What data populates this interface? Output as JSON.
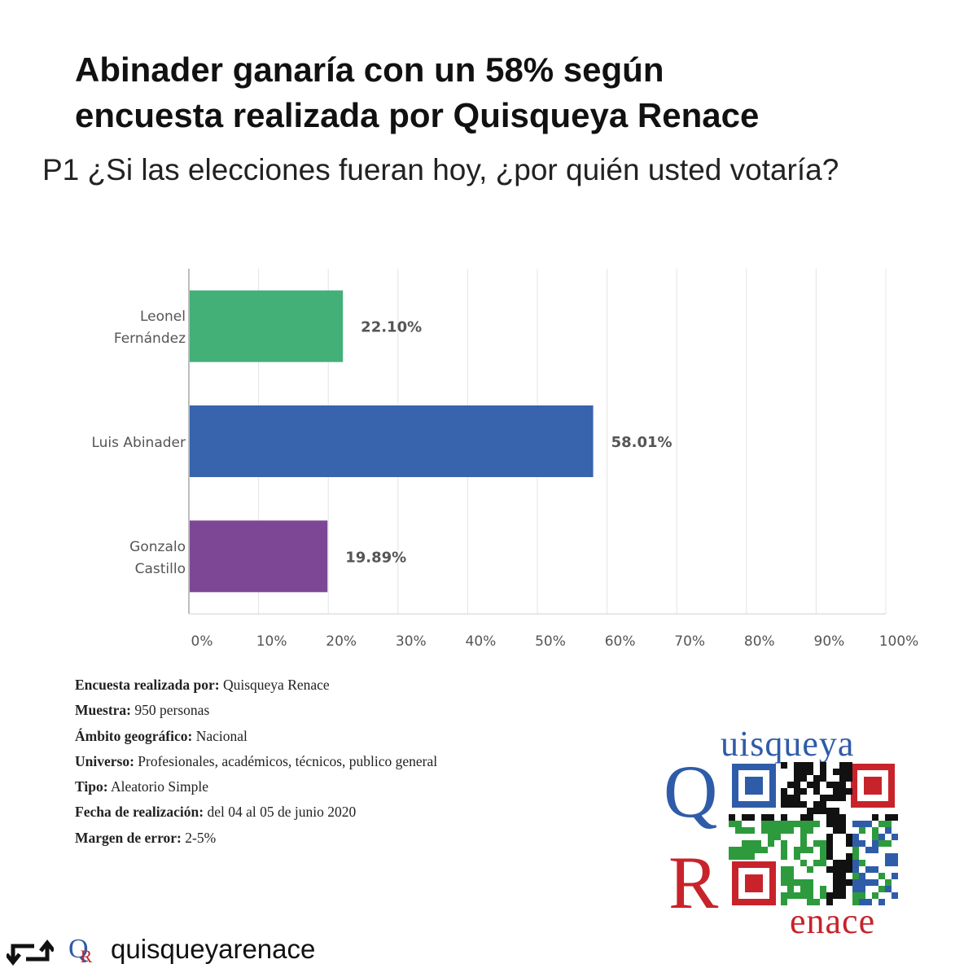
{
  "header": {
    "title_line1": "Abinader ganaría con un 58% según",
    "title_line2": "encuesta realizada por Quisqueya Renace",
    "question": "P1 ¿Si las elecciones fueran hoy, ¿por quién usted votaría?"
  },
  "chart_data": {
    "type": "bar",
    "orientation": "horizontal",
    "categories": [
      [
        "Leonel",
        "Fernández"
      ],
      [
        "Luis Abinader"
      ],
      [
        "Gonzalo",
        "Castillo"
      ]
    ],
    "values": [
      22.1,
      58.01,
      19.89
    ],
    "value_labels": [
      "22.10%",
      "58.01%",
      "19.89%"
    ],
    "colors": [
      "#43b077",
      "#3863ad",
      "#7e4796"
    ],
    "xlim": [
      0,
      100
    ],
    "xticks": [
      0,
      10,
      20,
      30,
      40,
      50,
      60,
      70,
      80,
      90,
      100
    ],
    "xtick_labels": [
      "0%",
      "10%",
      "20%",
      "30%",
      "40%",
      "50%",
      "60%",
      "70%",
      "80%",
      "90%",
      "100%"
    ],
    "grid": true,
    "title": "",
    "xlabel": "",
    "ylabel": ""
  },
  "footer": {
    "rows": [
      {
        "label": "Encuesta realizada por:",
        "value": "Quisqueya Renace"
      },
      {
        "label": "Muestra:",
        "value": "950 personas"
      },
      {
        "label": "Ámbito geográfico:",
        "value": "Nacional"
      },
      {
        "label": "Universo:",
        "value": "Profesionales, académicos, técnicos, publico general"
      },
      {
        "label": "Tipo:",
        "value": "Aleatorio Simple"
      },
      {
        "label": "Fecha de realización:",
        "value": "del 04 al 05 de junio 2020"
      },
      {
        "label": "Margen de error:",
        "value": "2-5%"
      }
    ]
  },
  "logo": {
    "word_top": "uisqueya",
    "letter_q": "Q",
    "letter_r": "R",
    "word_bottom": "enace",
    "colors": {
      "blue": "#2f5ca8",
      "red": "#c8232b",
      "green": "#2e9a3e",
      "black": "#111111"
    }
  },
  "repost": {
    "icon": "repost-icon",
    "mini_logo_q": "Q",
    "mini_logo_r": "R",
    "handle": "quisqueyarenace"
  }
}
